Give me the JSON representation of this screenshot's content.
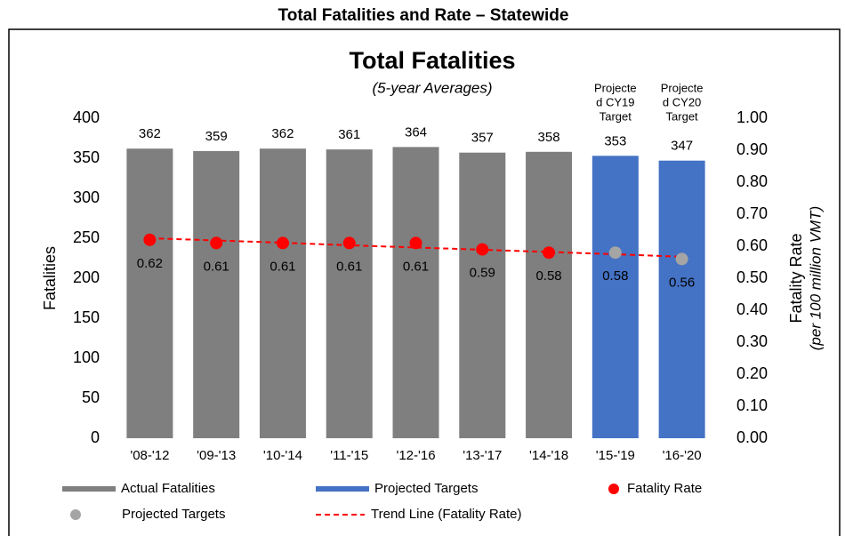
{
  "page_title": "Total Fatalities and Rate – Statewide",
  "chart_data": {
    "type": "combo",
    "title": "Total Fatalities",
    "subtitle": "(5-year Averages)",
    "y_label": "Fatalities",
    "y2_label": [
      "Fatality Rate",
      "(per 100 million VMT)"
    ],
    "annotations": [
      [
        "Projecte",
        "d CY19",
        "Target"
      ],
      [
        "Projecte",
        "d CY20",
        "Target"
      ]
    ],
    "categories": [
      "'08-'12",
      "'09-'13",
      "'10-'14",
      "'11-'15",
      "'12-'16",
      "'13-'17",
      "'14-'18",
      "'15-'19",
      "'16-'20"
    ],
    "ylim": [
      0,
      400
    ],
    "yticks": [
      0,
      50,
      100,
      150,
      200,
      250,
      300,
      350,
      400
    ],
    "y2lim": [
      0,
      1
    ],
    "y2ticks": [
      {
        "value": 0,
        "label": "0.00"
      },
      {
        "value": 0.1,
        "label": "0.10"
      },
      {
        "value": 0.2,
        "label": "0.20"
      },
      {
        "value": 0.3,
        "label": "0.30"
      },
      {
        "value": 0.4,
        "label": "0.40"
      },
      {
        "value": 0.5,
        "label": "0.50"
      },
      {
        "value": 0.6,
        "label": "0.60"
      },
      {
        "value": 0.7,
        "label": "0.70"
      },
      {
        "value": 0.8,
        "label": "0.80"
      },
      {
        "value": 0.9,
        "label": "0.90"
      },
      {
        "value": 1,
        "label": "1.00"
      }
    ],
    "series": [
      {
        "name": "Actual Fatalities",
        "type": "bar",
        "color": "#7f7f7f",
        "values": [
          362,
          359,
          362,
          361,
          364,
          357,
          358,
          null,
          null
        ]
      },
      {
        "name": "Projected Targets",
        "type": "bar",
        "color": "#4472c4",
        "values": [
          null,
          null,
          null,
          null,
          null,
          null,
          null,
          353,
          347
        ]
      },
      {
        "name": "Fatality Rate",
        "type": "scatter",
        "axis": "y2",
        "color": "#ff0000",
        "values": [
          0.62,
          0.61,
          0.61,
          0.61,
          0.61,
          0.59,
          0.58,
          null,
          null
        ]
      },
      {
        "name": "Projected Targets",
        "type": "scatter",
        "axis": "y2",
        "color": "#a5a5a5",
        "values": [
          null,
          null,
          null,
          null,
          null,
          null,
          null,
          0.58,
          0.56
        ]
      },
      {
        "name": "Trend Line (Fatality Rate)",
        "type": "line",
        "axis": "y2",
        "color": "#ff0000",
        "dashed": true,
        "values": [
          0.625,
          0.618,
          0.611,
          0.603,
          0.596,
          0.589,
          0.582,
          0.575,
          0.567
        ]
      }
    ]
  }
}
